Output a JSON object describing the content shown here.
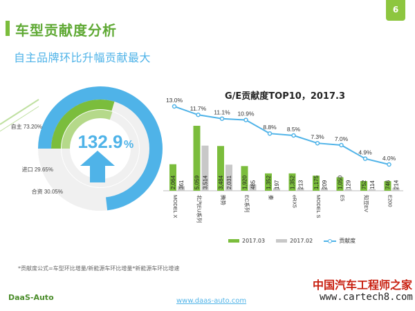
{
  "page": {
    "number": "6",
    "title": "车型贡献度分析",
    "subtitle": "自主品牌环比升幅贡献最大",
    "footnote": "*贡献度公式=车型环比增量/新能源车环比增量*新能源车环比增速",
    "footer_url": "www.daas-auto.com",
    "logo": "DaaS-Auto",
    "watermark_cn": "中国汽车工程师之家",
    "watermark_url": "www.cartech8.com"
  },
  "colors": {
    "green": "#7bbd3c",
    "gray": "#c8c8c8",
    "blue": "#4fb3e8",
    "light_green": "#b5d98a",
    "track": "#f0f0f0"
  },
  "donut": {
    "center_value": "132.9",
    "center_unit": "%",
    "segments": [
      {
        "label": "自主",
        "pct": 73.2,
        "text": "自主 73.20%",
        "color": "#4fb3e8"
      },
      {
        "label": "进口",
        "pct": 29.65,
        "text": "进口 29.65%",
        "color": "#7bbd3c"
      },
      {
        "label": "合资",
        "pct": 30.05,
        "text": "合资 30.05%",
        "color": "#b5d98a"
      }
    ]
  },
  "chart_data": {
    "type": "bar",
    "title": "G/E贡献度TOP10，2017.3",
    "categories": [
      "MODEL X",
      "北汽EU系列",
      "腾势",
      "EC系列",
      "秦",
      "eRX5",
      "MODEL S",
      "E5",
      "知豆EV",
      "E200"
    ],
    "series": [
      {
        "name": "2017.03",
        "type": "bar",
        "color": "#7bbd3c",
        "values": [
          2064,
          5059,
          3484,
          1920,
          1352,
          1352,
          1175,
          1050,
          752,
          746
        ],
        "labels": [
          "2,064",
          "5,059",
          "3,484",
          "1,920",
          "1,352",
          "1,352",
          "1,175",
          "1,050",
          "752",
          "746"
        ]
      },
      {
        "name": "2017.02",
        "type": "bar",
        "color": "#c8c8c8",
        "values": [
          361,
          3514,
          2031,
          485,
          197,
          213,
          209,
          129,
          114,
          214
        ],
        "labels": [
          "361",
          "3,514",
          "2,031",
          "485",
          "197",
          "213",
          "209",
          "129",
          "114",
          "214"
        ]
      },
      {
        "name": "贡献度",
        "type": "line",
        "color": "#4fb3e8",
        "values": [
          13.0,
          11.7,
          11.1,
          10.9,
          8.8,
          8.5,
          7.3,
          7.0,
          4.9,
          4.0
        ],
        "labels": [
          "13.0%",
          "11.7%",
          "11.1%",
          "10.9%",
          "8.8%",
          "8.5%",
          "7.3%",
          "7.0%",
          "4.9%",
          "4.0%"
        ]
      }
    ],
    "legend_position": "bottom"
  }
}
